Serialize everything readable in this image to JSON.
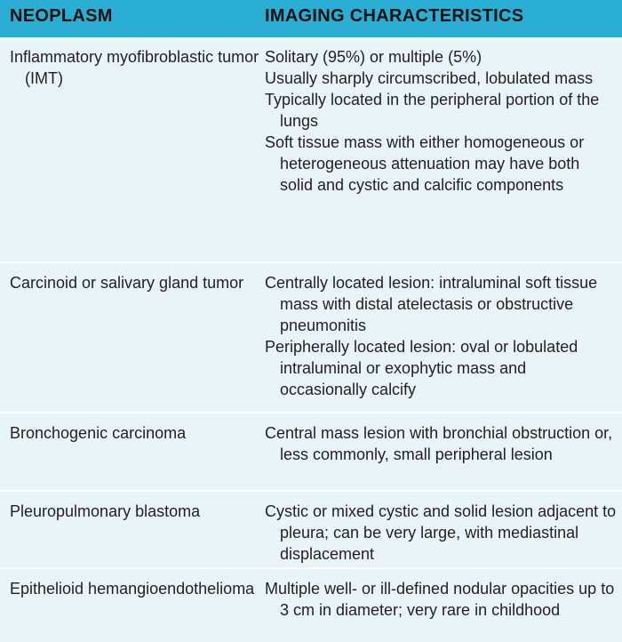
{
  "header": {
    "col1": "NEOPLASM",
    "col2": "IMAGING CHARACTERISTICS"
  },
  "rows": [
    {
      "neoplasm": "Inflammatory myofibroblastic tumor (IMT)",
      "characteristics": [
        "Solitary (95%) or multiple (5%)",
        "Usually sharply circumscribed, lobulated mass",
        "Typically located in the peripheral portion of the lungs",
        "Soft tissue mass with either homogeneous or heterogeneous attenuation may have both solid and cystic and calcific components"
      ]
    },
    {
      "neoplasm": "Carcinoid or salivary gland tumor",
      "characteristics": [
        "Centrally located lesion: intraluminal soft tissue mass with distal atelectasis or obstructive pneumonitis",
        "Peripherally located lesion: oval or lobulated intraluminal or exophytic mass and occasionally calcify"
      ]
    },
    {
      "neoplasm": "Bronchogenic carcinoma",
      "characteristics": [
        "Central mass lesion with bronchial obstruction or, less commonly, small peripheral lesion"
      ]
    },
    {
      "neoplasm": "Pleuropulmonary blastoma",
      "characteristics": [
        "Cystic or mixed cystic and solid lesion adjacent to pleura; can be very large, with mediastinal displacement"
      ]
    },
    {
      "neoplasm": "Epithelioid hemangioendothelioma",
      "characteristics": [
        "Multiple well- or ill-defined nodular opacities up to 3 cm in diameter; very rare in childhood"
      ]
    }
  ],
  "colors": {
    "header_bg": "#2aaed3",
    "body_bg": "#e8f4f8",
    "divider": "#ffffff",
    "text": "#231f20"
  }
}
